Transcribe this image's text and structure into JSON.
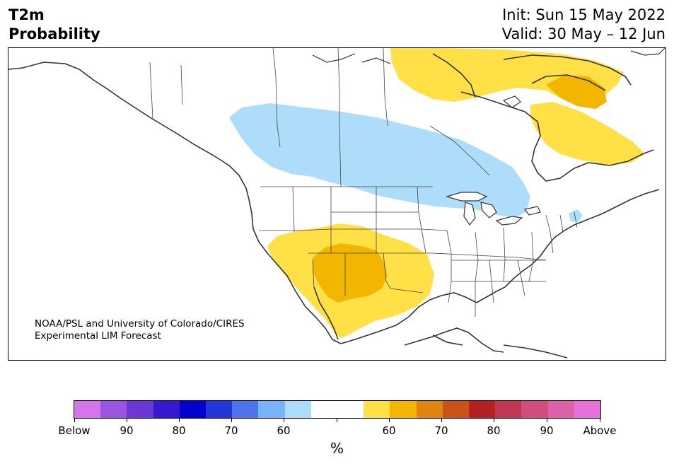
{
  "header": {
    "variable": "T2m",
    "product": "Probability",
    "init": "Init: Sun 15 May 2022",
    "valid": "Valid: 30 May – 12 Jun"
  },
  "map": {
    "credit_line1": "NOAA/PSL and University of Colorado/CIRES",
    "credit_line2": "Experimental LIM Forecast",
    "regions": [
      {
        "name": "northern-plains-below",
        "category": "Below 60",
        "color": "#aedcfb"
      },
      {
        "name": "southwest-above",
        "category": "Above 60",
        "color": "#ffe047"
      },
      {
        "name": "southwest-above-core",
        "category": "Above 60-70",
        "color": "#f2b600"
      },
      {
        "name": "hudson-bay-above",
        "category": "Above 60",
        "color": "#ffe047"
      },
      {
        "name": "baffin-above-core",
        "category": "Above 60-70",
        "color": "#f2b600"
      },
      {
        "name": "quebec-above",
        "category": "Above 60",
        "color": "#ffe047"
      }
    ]
  },
  "colorbar": {
    "colors": [
      "#d575ea",
      "#9a55e0",
      "#6a38d6",
      "#3718d0",
      "#0000cc",
      "#2337d8",
      "#4e74ea",
      "#78b2f7",
      "#aedcfb",
      "#ffffff",
      "#ffffff",
      "#ffe047",
      "#f2b600",
      "#de8510",
      "#c85319",
      "#b32121",
      "#c13651",
      "#d04e7b",
      "#de62a8",
      "#e773d8"
    ],
    "labels": [
      "Below",
      "90",
      "80",
      "70",
      "60",
      "60",
      "70",
      "80",
      "90",
      "Above"
    ],
    "unit": "%"
  }
}
